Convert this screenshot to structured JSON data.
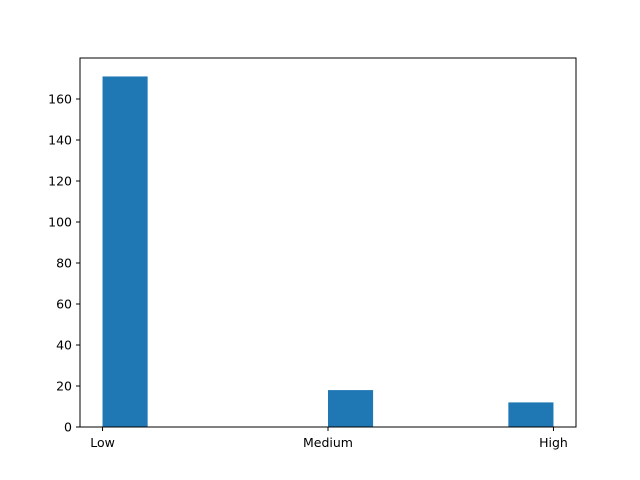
{
  "chart_data": {
    "type": "bar",
    "title": "",
    "xlabel": "",
    "ylabel": "",
    "categories": [
      "Low",
      "Medium",
      "High"
    ],
    "category_positions": [
      0,
      1,
      2
    ],
    "xlim": [
      -0.1,
      2.1
    ],
    "bar_width": 0.2,
    "bars": [
      {
        "x_start": 0.0,
        "x_end": 0.2,
        "value": 171
      },
      {
        "x_start": 1.0,
        "x_end": 1.2,
        "value": 18
      },
      {
        "x_start": 1.8,
        "x_end": 2.0,
        "value": 12
      }
    ],
    "ylim": [
      0,
      180
    ],
    "yticks": [
      0,
      20,
      40,
      60,
      80,
      100,
      120,
      140,
      160
    ],
    "grid": false,
    "colors": {
      "bar": "#1f77b4",
      "axis": "#000000",
      "background": "#ffffff"
    }
  }
}
